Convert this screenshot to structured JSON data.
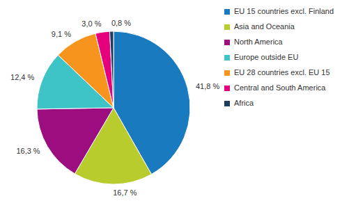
{
  "chart_data": {
    "type": "pie",
    "categories": [
      "EU 15 countries excl. Finland",
      "Asia and Oceania",
      "North America",
      "Europe outside EU",
      "EU 28 countries excl. EU 15",
      "Central and South America",
      "Africa"
    ],
    "values": [
      41.8,
      16.7,
      16.3,
      12.4,
      9.1,
      3.0,
      0.8
    ],
    "value_labels": [
      "41,8 %",
      "16,7 %",
      "16,3 %",
      "12,4 %",
      "9,1 %",
      "3,0 %",
      "0,8 %"
    ],
    "colors": [
      "#1a7abf",
      "#b8cc2e",
      "#9c0d7f",
      "#3ec4c6",
      "#f7941d",
      "#e5007e",
      "#1d3d5e"
    ],
    "data_labels": true,
    "legend": "right"
  }
}
